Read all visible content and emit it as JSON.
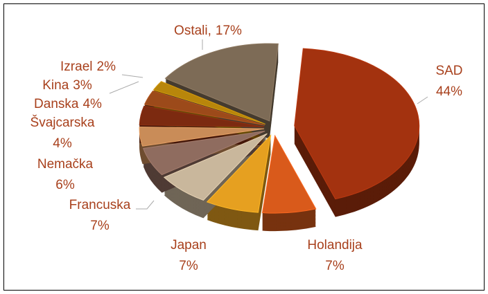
{
  "chart_data": {
    "type": "pie",
    "categories": [
      "SAD",
      "Holandija",
      "Japan",
      "Francuska",
      "Nemačka",
      "Švajcarska",
      "Danska",
      "Kina",
      "Izrael",
      "Ostali,"
    ],
    "values": [
      44,
      7,
      7,
      7,
      6,
      4,
      4,
      3,
      2,
      17
    ],
    "value_labels": [
      "44%",
      "7%",
      "7%",
      "7%",
      "6%",
      "4%",
      "4%",
      "3%",
      "2%",
      "17%"
    ],
    "colors": [
      "#a3320f",
      "#d95a1b",
      "#e6a020",
      "#c9b79c",
      "#8f6c5f",
      "#c98c58",
      "#7c2a10",
      "#9c4a1a",
      "#b8860b",
      "#7d6b56"
    ]
  }
}
